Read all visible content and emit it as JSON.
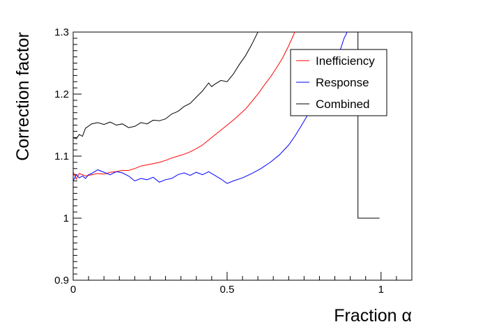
{
  "chart_data": {
    "type": "line",
    "title": "",
    "xlabel": "Fraction α",
    "ylabel": "Correction factor",
    "xlim": [
      0,
      1.1
    ],
    "ylim": [
      0.9,
      1.3
    ],
    "x_ticks": [
      "0",
      "0.5",
      "1"
    ],
    "y_ticks": [
      "0.9",
      "1",
      "1.1",
      "1.2",
      "1.3"
    ],
    "grid": false,
    "legend_position": "top-right",
    "series": [
      {
        "name": "Inefficiency",
        "color": "#ff0000",
        "x": [
          0.0,
          0.01,
          0.02,
          0.04,
          0.06,
          0.08,
          0.1,
          0.12,
          0.14,
          0.16,
          0.18,
          0.2,
          0.22,
          0.24,
          0.26,
          0.28,
          0.3,
          0.32,
          0.34,
          0.36,
          0.38,
          0.4,
          0.42,
          0.44,
          0.46,
          0.48,
          0.5,
          0.52,
          0.54,
          0.56,
          0.58,
          0.6,
          0.62,
          0.64,
          0.66,
          0.68,
          0.7,
          0.72
        ],
        "y": [
          1.075,
          1.063,
          1.072,
          1.068,
          1.07,
          1.072,
          1.071,
          1.074,
          1.075,
          1.077,
          1.077,
          1.08,
          1.084,
          1.086,
          1.088,
          1.09,
          1.093,
          1.097,
          1.1,
          1.103,
          1.107,
          1.112,
          1.118,
          1.126,
          1.134,
          1.142,
          1.15,
          1.158,
          1.167,
          1.176,
          1.188,
          1.2,
          1.214,
          1.227,
          1.242,
          1.258,
          1.278,
          1.3
        ]
      },
      {
        "name": "Response",
        "color": "#0000ff",
        "x": [
          0.0,
          0.01,
          0.02,
          0.03,
          0.04,
          0.05,
          0.06,
          0.08,
          0.1,
          0.12,
          0.14,
          0.16,
          0.18,
          0.2,
          0.22,
          0.24,
          0.26,
          0.28,
          0.3,
          0.32,
          0.34,
          0.36,
          0.38,
          0.4,
          0.42,
          0.44,
          0.46,
          0.48,
          0.5,
          0.52,
          0.55,
          0.58,
          0.61,
          0.64,
          0.67,
          0.7,
          0.72,
          0.74,
          0.76,
          0.78,
          0.8,
          0.82,
          0.84,
          0.86,
          0.87,
          0.88,
          0.89
        ],
        "y": [
          1.06,
          1.07,
          1.065,
          1.068,
          1.064,
          1.07,
          1.072,
          1.078,
          1.074,
          1.07,
          1.075,
          1.073,
          1.068,
          1.06,
          1.064,
          1.062,
          1.066,
          1.058,
          1.062,
          1.064,
          1.07,
          1.073,
          1.069,
          1.074,
          1.07,
          1.075,
          1.069,
          1.063,
          1.056,
          1.06,
          1.065,
          1.072,
          1.08,
          1.09,
          1.102,
          1.118,
          1.132,
          1.148,
          1.165,
          1.183,
          1.2,
          1.22,
          1.24,
          1.262,
          1.275,
          1.29,
          1.3
        ]
      },
      {
        "name": "Combined",
        "color": "#000000",
        "x": [
          0.0,
          0.01,
          0.02,
          0.03,
          0.04,
          0.06,
          0.08,
          0.1,
          0.12,
          0.14,
          0.16,
          0.18,
          0.2,
          0.22,
          0.24,
          0.26,
          0.28,
          0.3,
          0.32,
          0.34,
          0.36,
          0.38,
          0.4,
          0.42,
          0.44,
          0.45,
          0.46,
          0.48,
          0.5,
          0.52,
          0.54,
          0.56,
          0.58,
          0.6
        ],
        "y": [
          1.13,
          1.128,
          1.135,
          1.132,
          1.145,
          1.152,
          1.154,
          1.151,
          1.155,
          1.15,
          1.152,
          1.146,
          1.148,
          1.154,
          1.152,
          1.158,
          1.157,
          1.16,
          1.168,
          1.172,
          1.18,
          1.185,
          1.195,
          1.205,
          1.218,
          1.212,
          1.216,
          1.222,
          1.22,
          1.232,
          1.248,
          1.262,
          1.28,
          1.3
        ]
      }
    ],
    "extra_segment": {
      "color": "#000000",
      "x": [
        0.925,
        0.925,
        0.995
      ],
      "y": [
        1.3,
        1.0,
        1.0
      ]
    }
  }
}
